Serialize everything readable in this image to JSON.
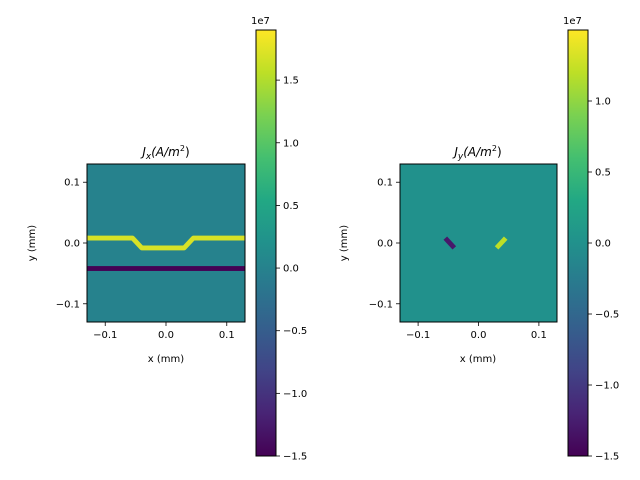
{
  "colors": {
    "viridis": [
      "#440154",
      "#482475",
      "#414487",
      "#355f8d",
      "#2a788e",
      "#21918c",
      "#22a884",
      "#44bf70",
      "#7ad151",
      "#bddf26",
      "#fde725"
    ],
    "background_jx": "#2a788e",
    "background_jy": "#21918c",
    "axis": "#000000"
  },
  "chart_data": [
    {
      "type": "heatmap",
      "title": "J_x(A/m^2)",
      "title_main": "J",
      "title_sub": "x",
      "title_rest": "(A/m",
      "title_sup": "2",
      "title_close": ")",
      "xlabel": "x (mm)",
      "ylabel": "y (mm)",
      "xlim": [
        -0.13,
        0.13
      ],
      "ylim": [
        -0.13,
        0.13
      ],
      "xticks": [
        -0.1,
        0.0,
        0.1
      ],
      "xtick_labels": [
        "−0.1",
        "0.0",
        "0.1"
      ],
      "yticks": [
        -0.1,
        0.0,
        0.1
      ],
      "ytick_labels": [
        "−0.1",
        "0.0",
        "0.1"
      ],
      "background_value": 0.0,
      "features": [
        {
          "name": "upper trace",
          "value": 17000000.0,
          "points": [
            [
              -0.13,
              0.008
            ],
            [
              -0.055,
              0.008
            ],
            [
              -0.04,
              -0.008
            ],
            [
              0.03,
              -0.008
            ],
            [
              0.045,
              0.008
            ],
            [
              0.13,
              0.008
            ]
          ],
          "half_thickness": 0.004
        },
        {
          "name": "lower strip",
          "value": -15000000.0,
          "y": -0.042,
          "half_thickness": 0.004
        }
      ],
      "colorbar": {
        "min": -15000000.0,
        "max": 19000000.0,
        "ticks": [
          -15000000.0,
          -10000000.0,
          -5000000.0,
          0.0,
          5000000.0,
          10000000.0,
          15000000.0
        ],
        "tick_labels": [
          "−1.5",
          "−1.0",
          "−0.5",
          "0.0",
          "0.5",
          "1.0",
          "1.5"
        ],
        "offset_label": "1e7"
      }
    },
    {
      "type": "heatmap",
      "title": "J_y(A/m^2)",
      "title_main": "J",
      "title_sub": "y",
      "title_rest": "(A/m",
      "title_sup": "2",
      "title_close": ")",
      "xlabel": "x (mm)",
      "ylabel": "y (mm)",
      "xlim": [
        -0.13,
        0.13
      ],
      "ylim": [
        -0.13,
        0.13
      ],
      "xticks": [
        -0.1,
        0.0,
        0.1
      ],
      "xtick_labels": [
        "−0.1",
        "0.0",
        "0.1"
      ],
      "yticks": [
        -0.1,
        0.0,
        0.1
      ],
      "ytick_labels": [
        "−0.1",
        "0.0",
        "0.1"
      ],
      "background_value": 0.0,
      "features": [
        {
          "name": "left slanted segment",
          "value": -13000000.0,
          "points": [
            [
              -0.055,
              0.008
            ],
            [
              -0.04,
              -0.008
            ]
          ],
          "half_thickness": 0.004
        },
        {
          "name": "right slanted segment",
          "value": 12000000.0,
          "points": [
            [
              0.03,
              -0.008
            ],
            [
              0.045,
              0.008
            ]
          ],
          "half_thickness": 0.004
        }
      ],
      "colorbar": {
        "min": -15000000.0,
        "max": 15000000.0,
        "ticks": [
          -15000000.0,
          -10000000.0,
          -5000000.0,
          0.0,
          5000000.0,
          10000000.0
        ],
        "tick_labels": [
          "−1.5",
          "−1.0",
          "−0.5",
          "0.0",
          "0.5",
          "1.0"
        ],
        "offset_label": "1e7"
      }
    }
  ]
}
